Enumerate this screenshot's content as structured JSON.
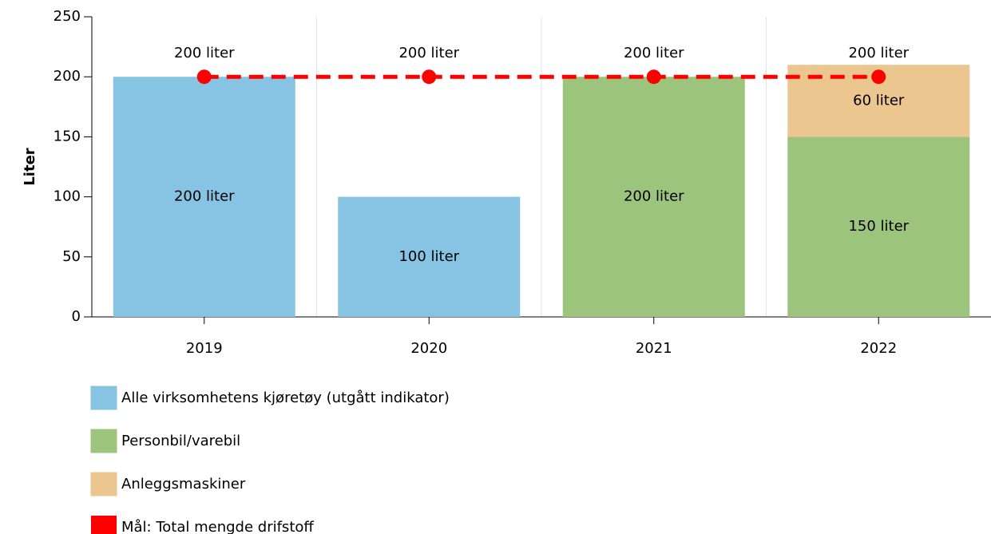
{
  "chart_data": {
    "type": "bar",
    "y_label": "Liter",
    "categories": [
      "2019",
      "2020",
      "2021",
      "2022"
    ],
    "ylim": [
      0,
      250
    ],
    "yticks": [
      0,
      50,
      100,
      150,
      200,
      250
    ],
    "series": [
      {
        "name": "Alle virksomhetens kjøretøy (utgått indikator)",
        "color": "#87c3e3",
        "values": [
          200,
          100,
          null,
          null
        ],
        "value_labels": [
          "200 liter",
          "100 liter",
          null,
          null
        ]
      },
      {
        "name": "Personbil/varebil",
        "color": "#9dc47c",
        "values": [
          null,
          null,
          200,
          150
        ],
        "value_labels": [
          null,
          null,
          "200 liter",
          "150 liter"
        ]
      },
      {
        "name": "Anleggsmaskiner",
        "color": "#ebc68e",
        "values": [
          null,
          null,
          null,
          60
        ],
        "value_labels": [
          null,
          null,
          null,
          "60 liter"
        ]
      },
      {
        "name": "Mål: Total mengde drifstoff",
        "type": "line",
        "color": "#ff0000",
        "dashed": true,
        "values": [
          200,
          200,
          200,
          200
        ],
        "value_labels": [
          "200 liter",
          "200 liter",
          "200 liter",
          "200 liter"
        ]
      }
    ]
  }
}
